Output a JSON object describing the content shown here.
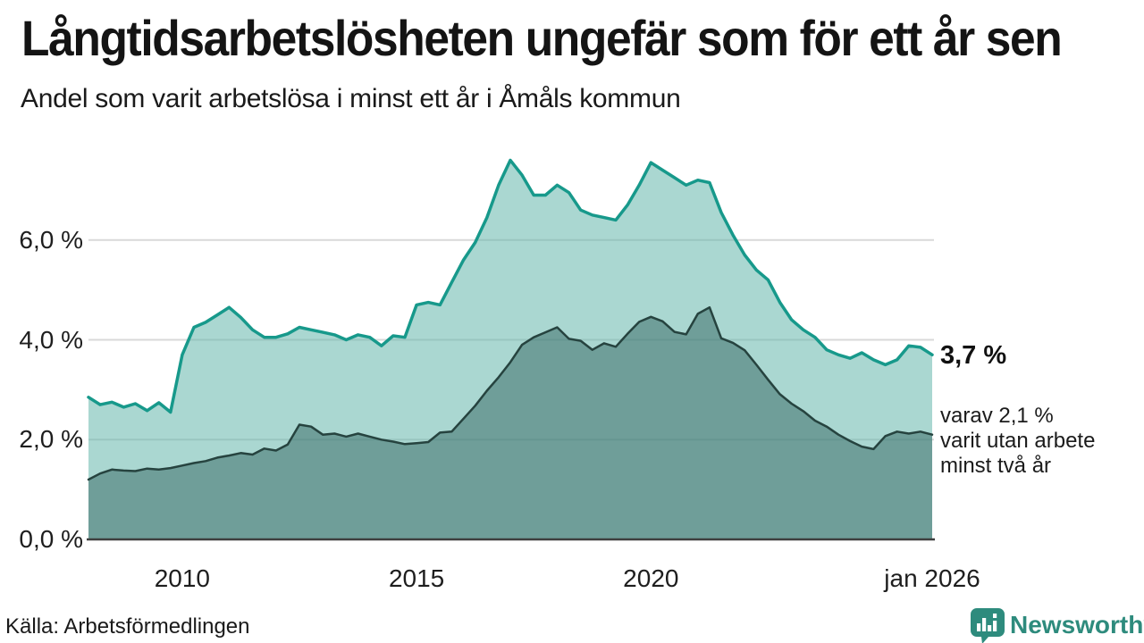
{
  "header": {
    "title": "Långtidsarbetslösheten ungefär som för ett år sen",
    "subtitle": "Andel som varit arbetslösa i minst ett år i Åmåls kommun"
  },
  "chart_data": {
    "type": "area",
    "title": "Långtidsarbetslösheten ungefär som för ett år sen",
    "subtitle": "Andel som varit arbetslösa i minst ett år i Åmåls kommun",
    "x_unit": "decimal_year",
    "xlim": [
      2008,
      2026
    ],
    "ylim": [
      0,
      7.8
    ],
    "grid": "horizontal",
    "x": [
      2008,
      2008.25,
      2008.5,
      2008.75,
      2009,
      2009.25,
      2009.5,
      2009.75,
      2010,
      2010.25,
      2010.5,
      2010.75,
      2011,
      2011.25,
      2011.5,
      2011.75,
      2012,
      2012.25,
      2012.5,
      2012.75,
      2013,
      2013.25,
      2013.5,
      2013.75,
      2014,
      2014.25,
      2014.5,
      2014.75,
      2015,
      2015.25,
      2015.5,
      2015.75,
      2016,
      2016.25,
      2016.5,
      2016.75,
      2017,
      2017.25,
      2017.5,
      2017.75,
      2018,
      2018.25,
      2018.5,
      2018.75,
      2019,
      2019.25,
      2019.5,
      2019.75,
      2020,
      2020.25,
      2020.5,
      2020.75,
      2021,
      2021.25,
      2021.5,
      2021.75,
      2022,
      2022.25,
      2022.5,
      2022.75,
      2023,
      2023.25,
      2023.5,
      2023.75,
      2024,
      2024.25,
      2024.5,
      2024.75,
      2025,
      2025.25,
      2025.5,
      2025.75,
      2026
    ],
    "series": [
      {
        "name": "Andel arbetslösa minst ett år",
        "line_color": "#17998B",
        "line_width": 3.5,
        "fill": "#64B6AB",
        "fill_opacity": 0.55,
        "values": [
          2.85,
          2.7,
          2.75,
          2.65,
          2.72,
          2.58,
          2.74,
          2.55,
          3.7,
          4.25,
          4.35,
          4.5,
          4.65,
          4.45,
          4.2,
          4.05,
          4.05,
          4.12,
          4.25,
          4.2,
          4.15,
          4.1,
          4.0,
          4.1,
          4.05,
          3.88,
          4.08,
          4.05,
          4.7,
          4.75,
          4.7,
          5.15,
          5.6,
          5.95,
          6.45,
          7.1,
          7.6,
          7.3,
          6.9,
          6.9,
          7.1,
          6.95,
          6.6,
          6.5,
          6.45,
          6.4,
          6.7,
          7.1,
          7.55,
          7.4,
          7.25,
          7.1,
          7.2,
          7.15,
          6.55,
          6.1,
          5.7,
          5.4,
          5.2,
          4.75,
          4.4,
          4.2,
          4.05,
          3.8,
          3.7,
          3.63,
          3.74,
          3.6,
          3.5,
          3.6,
          3.88,
          3.85,
          3.7
        ]
      },
      {
        "name": "Andel arbetslösa minst två år",
        "line_color": "#26433F",
        "line_width": 2.5,
        "fill": "#346561",
        "fill_opacity": 0.5,
        "values": [
          1.2,
          1.32,
          1.4,
          1.38,
          1.37,
          1.42,
          1.4,
          1.43,
          1.48,
          1.53,
          1.57,
          1.64,
          1.68,
          1.73,
          1.7,
          1.82,
          1.78,
          1.9,
          2.3,
          2.26,
          2.1,
          2.12,
          2.06,
          2.12,
          2.06,
          2.0,
          1.96,
          1.91,
          1.93,
          1.95,
          2.14,
          2.16,
          2.42,
          2.68,
          2.98,
          3.25,
          3.55,
          3.9,
          4.05,
          4.15,
          4.25,
          4.02,
          3.98,
          3.8,
          3.93,
          3.86,
          4.12,
          4.36,
          4.46,
          4.37,
          4.16,
          4.11,
          4.52,
          4.65,
          4.03,
          3.94,
          3.79,
          3.5,
          3.2,
          2.91,
          2.72,
          2.57,
          2.38,
          2.26,
          2.1,
          1.97,
          1.86,
          1.81,
          2.07,
          2.16,
          2.12,
          2.16,
          2.1
        ]
      }
    ],
    "x_ticks": [
      {
        "v": 2010,
        "label": "2010"
      },
      {
        "v": 2015,
        "label": "2015"
      },
      {
        "v": 2020,
        "label": "2020"
      },
      {
        "v": 2026,
        "label": "jan 2026"
      }
    ],
    "y_ticks": [
      {
        "v": 0,
        "label": "0,0 %"
      },
      {
        "v": 2,
        "label": "2,0 %"
      },
      {
        "v": 4,
        "label": "4,0 %"
      },
      {
        "v": 6,
        "label": "6,0 %"
      }
    ]
  },
  "annotations": {
    "primary_value": "3,7 %",
    "secondary_line1": "varav 2,1 %",
    "secondary_line2": "varit utan arbete",
    "secondary_line3": "minst två år"
  },
  "footer": {
    "source": "Källa: Arbetsförmedlingen",
    "brand": "Newsworthy"
  },
  "colors": {
    "accent_teal": "#17998B",
    "light_area": "#AAD7D1",
    "dark_area": "#6F9E99",
    "dark_line": "#26433F",
    "grid": "#D9D9D9",
    "axis": "#3F3F3F",
    "brand_teal": "#2E8B7D"
  }
}
